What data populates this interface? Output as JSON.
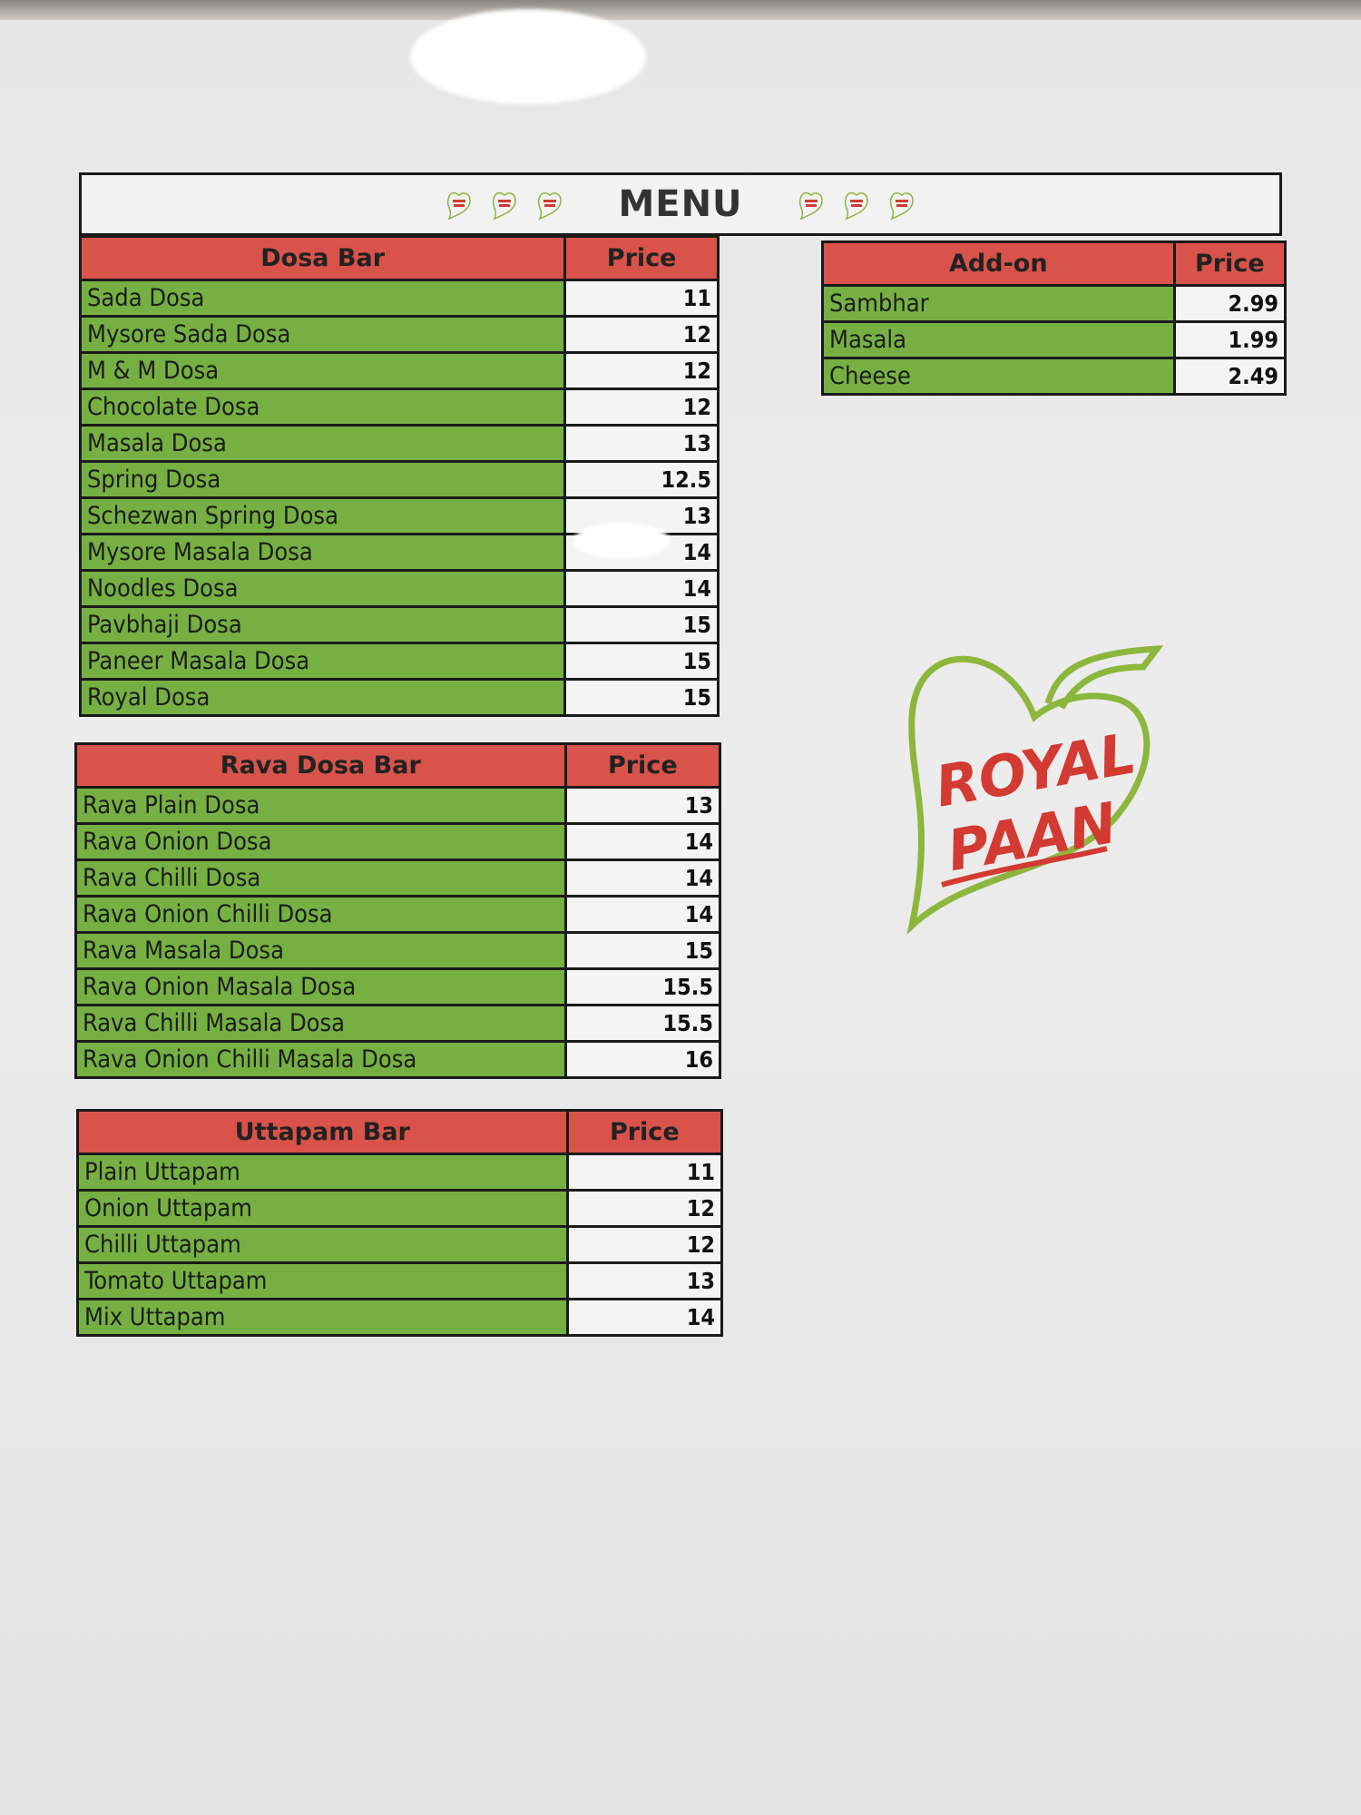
{
  "menu_title": "MENU",
  "logo_text": [
    "ROYAL",
    "PAAN"
  ],
  "colors": {
    "header_red": "#d9534a",
    "item_green": "#76b043",
    "logo_red": "#d23a32",
    "logo_green": "#8cb63c"
  },
  "dosa_bar": {
    "title": "Dosa Bar",
    "price_label": "Price",
    "items": [
      {
        "name": "Sada Dosa",
        "price": "11"
      },
      {
        "name": "Mysore Sada Dosa",
        "price": "12"
      },
      {
        "name": "M & M Dosa",
        "price": "12"
      },
      {
        "name": "Chocolate Dosa",
        "price": "12"
      },
      {
        "name": "Masala Dosa",
        "price": "13"
      },
      {
        "name": "Spring Dosa",
        "price": "12.5"
      },
      {
        "name": "Schezwan Spring Dosa",
        "price": "13"
      },
      {
        "name": "Mysore Masala Dosa",
        "price": "14"
      },
      {
        "name": "Noodles Dosa",
        "price": "14"
      },
      {
        "name": "Pavbhaji Dosa",
        "price": "15"
      },
      {
        "name": "Paneer Masala Dosa",
        "price": "15"
      },
      {
        "name": "Royal Dosa",
        "price": "15"
      }
    ]
  },
  "add_on": {
    "title": "Add-on",
    "price_label": "Price",
    "items": [
      {
        "name": "Sambhar",
        "price": "2.99"
      },
      {
        "name": "Masala",
        "price": "1.99"
      },
      {
        "name": "Cheese",
        "price": "2.49"
      }
    ]
  },
  "rava_dosa_bar": {
    "title": "Rava Dosa Bar",
    "price_label": "Price",
    "items": [
      {
        "name": "Rava Plain Dosa",
        "price": "13"
      },
      {
        "name": "Rava Onion Dosa",
        "price": "14"
      },
      {
        "name": "Rava Chilli Dosa",
        "price": "14"
      },
      {
        "name": "Rava Onion Chilli Dosa",
        "price": "14"
      },
      {
        "name": "Rava Masala Dosa",
        "price": "15"
      },
      {
        "name": "Rava Onion Masala Dosa",
        "price": "15.5"
      },
      {
        "name": "Rava Chilli Masala Dosa",
        "price": "15.5"
      },
      {
        "name": "Rava Onion Chilli Masala Dosa",
        "price": "16"
      }
    ]
  },
  "uttapam_bar": {
    "title": "Uttapam Bar",
    "price_label": "Price",
    "items": [
      {
        "name": "Plain Uttapam",
        "price": "11"
      },
      {
        "name": "Onion Uttapam",
        "price": "12"
      },
      {
        "name": "Chilli Uttapam",
        "price": "12"
      },
      {
        "name": "Tomato Uttapam",
        "price": "13"
      },
      {
        "name": "Mix Uttapam",
        "price": "14"
      }
    ]
  }
}
